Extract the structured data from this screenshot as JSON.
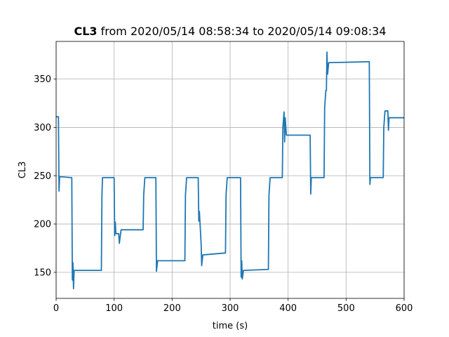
{
  "chart_data": {
    "type": "line",
    "title_bold": "CL3",
    "title": "from 2020/05/14 08:58:34 to 2020/05/14 09:08:34",
    "x_label": "time (s)",
    "y_label": "CL3",
    "x": [
      0,
      4,
      5,
      6,
      27,
      28,
      29,
      30,
      31,
      33,
      78,
      79,
      80,
      100,
      101,
      102,
      103,
      108,
      109,
      112,
      150,
      151,
      153,
      172,
      173,
      175,
      222,
      223,
      225,
      245,
      246,
      247,
      250,
      251,
      253,
      292,
      293,
      295,
      318,
      319,
      320,
      321,
      323,
      366,
      367,
      369,
      390,
      391,
      393,
      394,
      395,
      397,
      438,
      439,
      440,
      462,
      463,
      465,
      466,
      467,
      468,
      470,
      540,
      541,
      542,
      564,
      565,
      567,
      572,
      573,
      574,
      600
    ],
    "y": [
      311,
      311,
      234,
      249,
      248,
      142,
      160,
      133,
      152,
      152,
      152,
      230,
      248,
      248,
      188,
      202,
      190,
      190,
      180,
      194,
      194,
      230,
      248,
      248,
      151,
      162,
      162,
      230,
      248,
      248,
      203,
      213,
      180,
      157,
      168,
      170,
      230,
      248,
      248,
      145,
      162,
      143,
      152,
      153,
      230,
      248,
      248,
      300,
      316,
      285,
      310,
      292,
      292,
      231,
      248,
      248,
      320,
      338,
      338,
      378,
      355,
      367,
      368,
      241,
      248,
      248,
      300,
      317,
      317,
      297,
      310,
      310
    ],
    "color": "#1f77b4",
    "xlim": [
      0,
      600
    ],
    "xticks": [
      0,
      100,
      200,
      300,
      400,
      500,
      600
    ],
    "ylim": [
      123,
      389
    ],
    "yticks": [
      150,
      200,
      250,
      300,
      350
    ],
    "grid": true
  }
}
